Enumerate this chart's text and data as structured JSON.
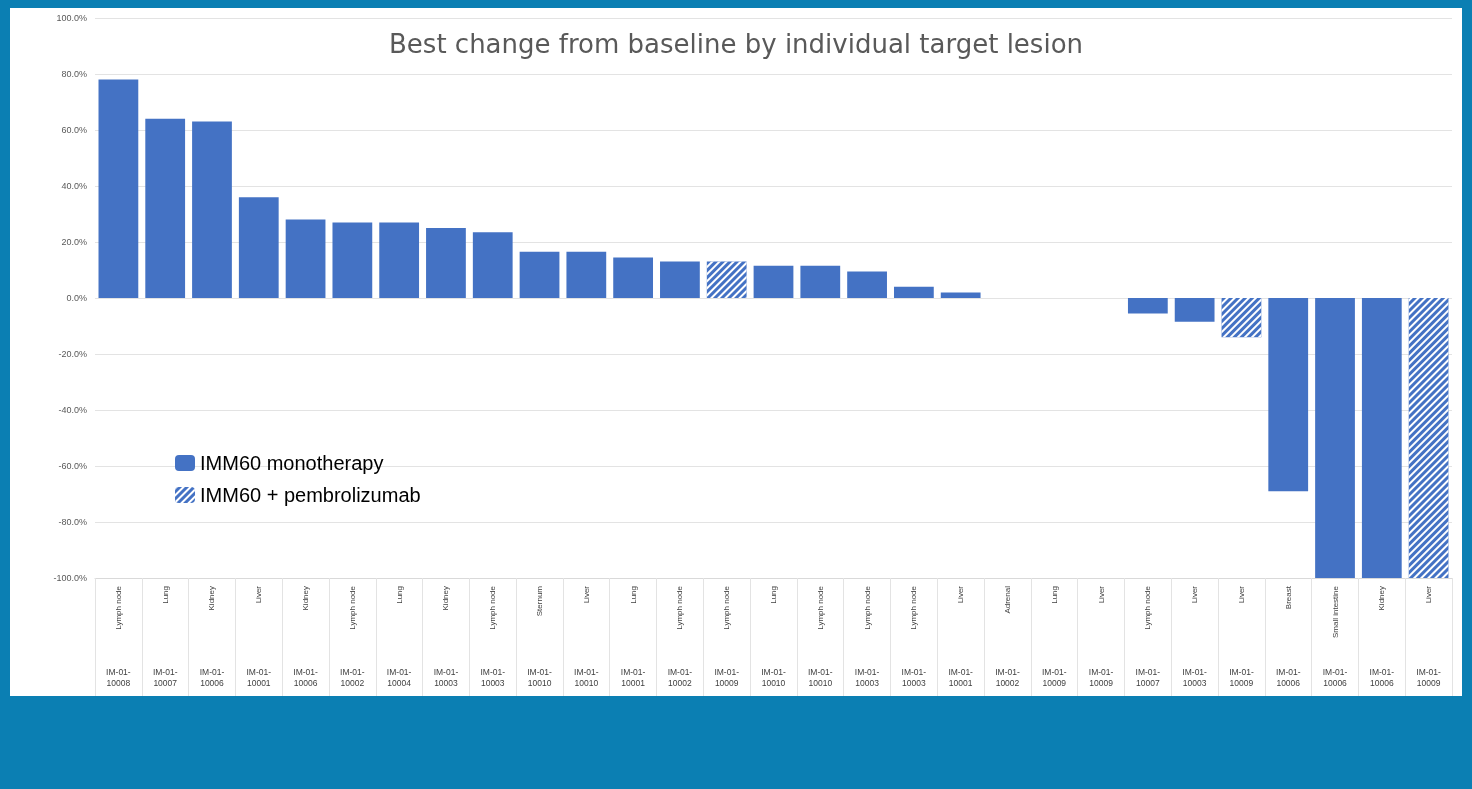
{
  "chart_data": {
    "type": "bar",
    "title": "Best change from baseline by individual target lesion",
    "categories": [
      "Lymph node",
      "Lung",
      "Kidney",
      "Liver",
      "Kidney",
      "Lymph node",
      "Lung",
      "Kidney",
      "Lymph node",
      "Sternum",
      "Liver",
      "Lung",
      "Lymph node",
      "Lymph node",
      "Lung",
      "Lymph node",
      "Lymph node",
      "Lymph node",
      "Liver",
      "Adrenal",
      "Lung",
      "Liver",
      "Lymph node",
      "Liver",
      "Liver",
      "Breast",
      "Small intestine",
      "Kidney",
      "Liver"
    ],
    "annotations": [
      "IM-01-10008",
      "IM-01-10007",
      "IM-01-10006",
      "IM-01-10001",
      "IM-01-10006",
      "IM-01-10002",
      "IM-01-10004",
      "IM-01-10003",
      "IM-01-10003",
      "IM-01-10010",
      "IM-01-10010",
      "IM-01-10001",
      "IM-01-10002",
      "IM-01-10009",
      "IM-01-10010",
      "IM-01-10010",
      "IM-01-10003",
      "IM-01-10003",
      "IM-01-10001",
      "IM-01-10002",
      "IM-01-10009",
      "IM-01-10009",
      "IM-01-10007",
      "IM-01-10003",
      "IM-01-10009",
      "IM-01-10006",
      "IM-01-10006",
      "IM-01-10006",
      "IM-01-10009"
    ],
    "series": [
      {
        "name": "IMM60 monotherapy",
        "color": "#4472c4",
        "values": [
          78,
          64,
          63,
          36,
          28,
          27,
          27,
          25,
          23.5,
          16.5,
          16.5,
          14.5,
          13,
          null,
          11.5,
          11.5,
          9.5,
          4,
          2,
          0,
          0,
          0,
          -5.5,
          -8.5,
          null,
          -69,
          -100,
          -100,
          null
        ]
      },
      {
        "name": "IMM60 + pembrolizumab",
        "color": "#4472c4",
        "values": [
          null,
          null,
          null,
          null,
          null,
          null,
          null,
          null,
          null,
          null,
          null,
          null,
          null,
          13,
          null,
          null,
          null,
          null,
          null,
          null,
          null,
          null,
          null,
          null,
          -14,
          null,
          null,
          null,
          -100
        ]
      }
    ],
    "ylim": [
      -100,
      100
    ],
    "yticks": [
      {
        "value": -100,
        "label": "-100.0%"
      },
      {
        "value": -80,
        "label": "-80.0%"
      },
      {
        "value": -60,
        "label": "-60.0%"
      },
      {
        "value": -40,
        "label": "-40.0%"
      },
      {
        "value": -20,
        "label": "-20.0%"
      },
      {
        "value": 0,
        "label": "0.0%"
      },
      {
        "value": 20,
        "label": "20.0%"
      },
      {
        "value": 40,
        "label": "40.0%"
      },
      {
        "value": 60,
        "label": "60.0%"
      },
      {
        "value": 80,
        "label": "80.0%"
      },
      {
        "value": 100,
        "label": "100.0%"
      }
    ],
    "grid": "y",
    "legend": "bottom left"
  }
}
